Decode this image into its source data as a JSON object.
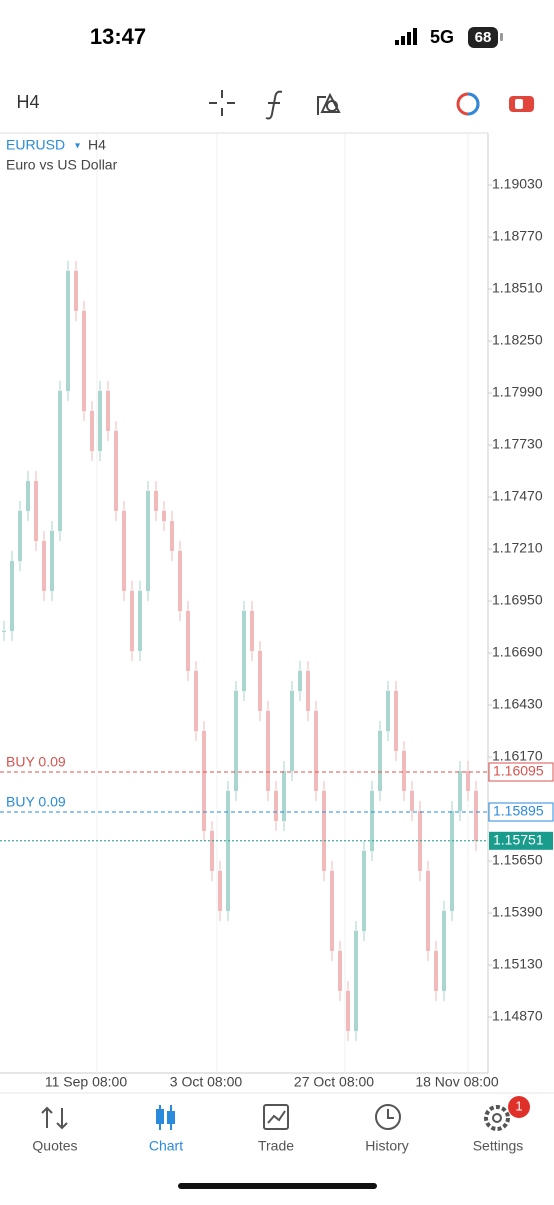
{
  "status_bar": {
    "time": "13:47",
    "network": "5G",
    "battery": "68"
  },
  "toolbar": {
    "timeframe": "H4"
  },
  "chart_data": {
    "type": "candlestick",
    "symbol": "EURUSD",
    "timeframe": "H4",
    "description": "Euro vs US Dollar",
    "close": [
      1.168,
      1.1715,
      1.174,
      1.1755,
      1.1725,
      1.17,
      1.173,
      1.18,
      1.186,
      1.184,
      1.179,
      1.177,
      1.18,
      1.178,
      1.174,
      1.17,
      1.167,
      1.17,
      1.175,
      1.174,
      1.1735,
      1.172,
      1.169,
      1.166,
      1.163,
      1.158,
      1.156,
      1.154,
      1.16,
      1.165,
      1.169,
      1.167,
      1.164,
      1.16,
      1.1585,
      1.161,
      1.165,
      1.166,
      1.164,
      1.16,
      1.156,
      1.152,
      1.15,
      1.148,
      1.153,
      1.157,
      1.16,
      1.163,
      1.165,
      1.162,
      1.16,
      1.159,
      1.156,
      1.152,
      1.15,
      1.154,
      1.159,
      1.161,
      1.16,
      1.1575
    ],
    "up_color": "#a9d6ce",
    "down_color": "#f1b9b9",
    "ylim": [
      1.1459,
      1.1929
    ],
    "yticks": [
      {
        "value": 1.1903,
        "label": "1.19030"
      },
      {
        "value": 1.1877,
        "label": "1.18770"
      },
      {
        "value": 1.1851,
        "label": "1.18510"
      },
      {
        "value": 1.1825,
        "label": "1.18250"
      },
      {
        "value": 1.1799,
        "label": "1.17990"
      },
      {
        "value": 1.1773,
        "label": "1.17730"
      },
      {
        "value": 1.1747,
        "label": "1.17470"
      },
      {
        "value": 1.1721,
        "label": "1.17210"
      },
      {
        "value": 1.1695,
        "label": "1.16950"
      },
      {
        "value": 1.1669,
        "label": "1.16690"
      },
      {
        "value": 1.1643,
        "label": "1.16430"
      },
      {
        "value": 1.1617,
        "label": "1.16170"
      },
      {
        "value": 1.1565,
        "label": "1.15650"
      },
      {
        "value": 1.1539,
        "label": "1.15390"
      },
      {
        "value": 1.1513,
        "label": "1.15130"
      },
      {
        "value": 1.1487,
        "label": "1.14870"
      }
    ],
    "x_tick_labels": [
      "11 Sep 08:00",
      "3 Oct 08:00",
      "27 Oct 08:00",
      "18 Nov 08:00"
    ],
    "levels": [
      {
        "label": "BUY 0.09",
        "price": 1.16095,
        "color": "#d9534f"
      },
      {
        "label": "BUY 0.09",
        "price": 1.15895,
        "color": "#2a8bdc"
      }
    ],
    "bid": 1.15751,
    "bid_color": "#1a9c8c"
  },
  "nav": {
    "tabs": [
      "Quotes",
      "Chart",
      "Trade",
      "History",
      "Settings"
    ],
    "active": 1,
    "badge": "1"
  }
}
